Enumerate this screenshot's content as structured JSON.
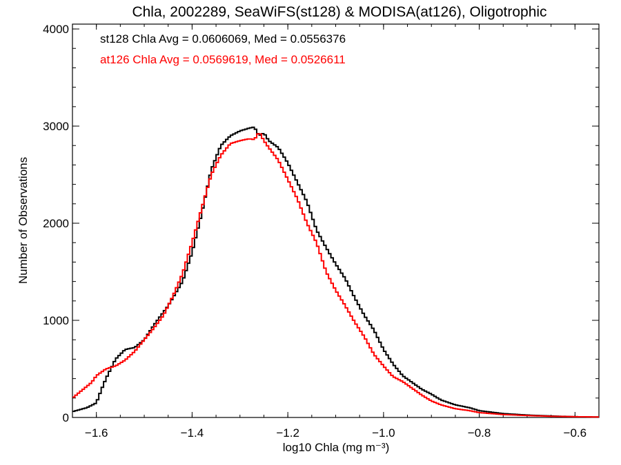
{
  "chart_data": {
    "type": "line",
    "title": "Chla, 2002289, SeaWiFS(st128) & MODISA(at126), Oligotrophic",
    "xlabel": "log10 Chla (mg m⁻³)",
    "ylabel": "Number of Observations",
    "xlim": [
      -1.65,
      -0.55
    ],
    "ylim": [
      0,
      4050
    ],
    "xticks": [
      -1.6,
      -1.4,
      -1.2,
      -1.0,
      -0.8,
      -0.6
    ],
    "xtick_labels": [
      "−1.6",
      "−1.4",
      "−1.2",
      "−1.0",
      "−0.8",
      "−0.6"
    ],
    "yticks": [
      0,
      1000,
      2000,
      3000,
      4000
    ],
    "ytick_labels": [
      "0",
      "1000",
      "2000",
      "3000",
      "4000"
    ],
    "grid": false,
    "annotations": [
      {
        "text": "st128 Chla Avg = 0.0606069, Med = 0.0556376",
        "color": "#000000"
      },
      {
        "text": "at126 Chla Avg = 0.0569619, Med = 0.0526611",
        "color": "#ff0000"
      }
    ],
    "series": [
      {
        "color": "#000000",
        "x": [
          -1.65,
          -1.62,
          -1.6,
          -1.59,
          -1.58,
          -1.56,
          -1.55,
          -1.54,
          -1.52,
          -1.5,
          -1.48,
          -1.45,
          -1.42,
          -1.4,
          -1.38,
          -1.36,
          -1.34,
          -1.32,
          -1.3,
          -1.28,
          -1.27,
          -1.26,
          -1.25,
          -1.24,
          -1.22,
          -1.2,
          -1.18,
          -1.16,
          -1.14,
          -1.12,
          -1.1,
          -1.08,
          -1.06,
          -1.04,
          -1.02,
          -1.0,
          -0.98,
          -0.96,
          -0.94,
          -0.92,
          -0.9,
          -0.88,
          -0.85,
          -0.82,
          -0.8,
          -0.75,
          -0.7,
          -0.65,
          -0.6,
          -0.55
        ],
        "values": [
          60,
          100,
          150,
          280,
          400,
          600,
          650,
          700,
          720,
          800,
          950,
          1150,
          1400,
          1700,
          2100,
          2550,
          2800,
          2900,
          2950,
          2980,
          2990,
          2900,
          2930,
          2850,
          2780,
          2620,
          2420,
          2220,
          1930,
          1750,
          1580,
          1430,
          1230,
          1050,
          900,
          700,
          550,
          430,
          360,
          290,
          240,
          180,
          130,
          100,
          70,
          40,
          25,
          15,
          8,
          5
        ]
      },
      {
        "color": "#ff0000",
        "x": [
          -1.65,
          -1.63,
          -1.61,
          -1.6,
          -1.58,
          -1.56,
          -1.54,
          -1.52,
          -1.5,
          -1.48,
          -1.46,
          -1.44,
          -1.42,
          -1.4,
          -1.38,
          -1.36,
          -1.34,
          -1.32,
          -1.3,
          -1.28,
          -1.27,
          -1.26,
          -1.25,
          -1.24,
          -1.22,
          -1.2,
          -1.18,
          -1.16,
          -1.14,
          -1.12,
          -1.1,
          -1.08,
          -1.06,
          -1.04,
          -1.02,
          -1.0,
          -0.98,
          -0.96,
          -0.94,
          -0.92,
          -0.9,
          -0.88,
          -0.85,
          -0.82,
          -0.8,
          -0.75,
          -0.7,
          -0.65,
          -0.6,
          -0.55
        ],
        "values": [
          200,
          280,
          360,
          430,
          500,
          530,
          590,
          680,
          800,
          920,
          1050,
          1250,
          1480,
          1800,
          2150,
          2500,
          2700,
          2820,
          2850,
          2870,
          2860,
          2940,
          2850,
          2780,
          2650,
          2450,
          2250,
          2000,
          1800,
          1500,
          1310,
          1150,
          980,
          830,
          650,
          530,
          420,
          370,
          300,
          230,
          170,
          130,
          90,
          70,
          50,
          30,
          20,
          12,
          8,
          5
        ]
      }
    ]
  }
}
